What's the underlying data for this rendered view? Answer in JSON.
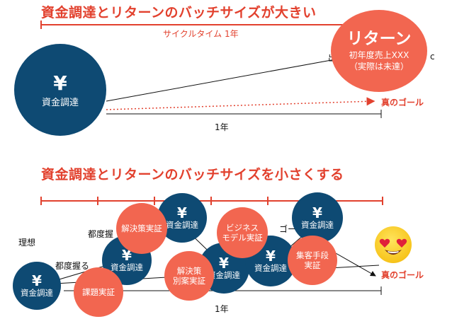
{
  "top": {
    "title": "資金調達とリターンのバッチサイズが大きい",
    "cycle_label": "サイクルタイム 1年",
    "fund_circle": {
      "symbol": "¥",
      "label": "資金調達"
    },
    "return_circle": {
      "title": "リターン",
      "line1": "初年度売上XXX",
      "line2": "（実際は未達）"
    },
    "left_hidden_text": "出",
    "right_hidden_text": "c",
    "goal_label": "真のゴール",
    "year_label": "1年"
  },
  "bottom": {
    "title": "資金調達とリターンのバッチサイズを小さくする",
    "ideal_label": "理想",
    "tsudo1_label": "都度握",
    "tsudo2_label": "都度握る",
    "goal_partial_label": "ゴー",
    "circles": [
      {
        "label": "資金調達",
        "symbol": "¥"
      },
      {
        "label": "資金調達",
        "symbol": "¥"
      },
      {
        "label": "資金調達",
        "symbol": "¥"
      },
      {
        "label": "資金調達",
        "symbol": "¥"
      },
      {
        "label": "資金調達",
        "symbol": "¥"
      },
      {
        "label": "資金調達",
        "symbol": "¥"
      }
    ],
    "steps": [
      {
        "line1": "課題実証"
      },
      {
        "line1": "解決策実証"
      },
      {
        "line1": "解決策",
        "line2": "別案実証"
      },
      {
        "line1": "ビジネス",
        "line2": "モデル実証"
      },
      {
        "line1": "集客手段",
        "line2": "実証"
      }
    ],
    "emoji": "smiling-face-with-heart-eyes",
    "goal_label": "真のゴール",
    "year_label": "1年"
  },
  "colors": {
    "accent": "#e2412e",
    "navy": "#0e4a73",
    "coral": "#f26650"
  }
}
